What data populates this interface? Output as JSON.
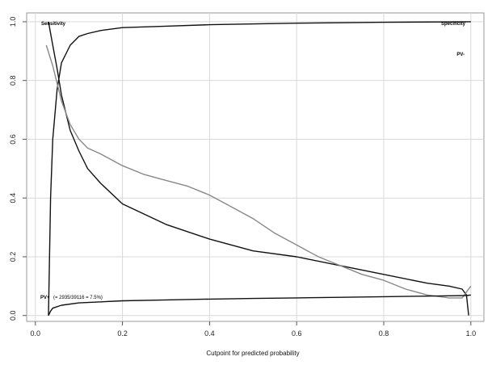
{
  "chart_data": {
    "type": "line",
    "title": "",
    "xlabel": "Cutpoint for predicted probability",
    "ylabel": "",
    "xlim": [
      -0.02,
      1.03
    ],
    "ylim": [
      -0.02,
      1.03
    ],
    "x_ticks": [
      "0.0",
      "0.2",
      "0.4",
      "0.6",
      "0.8",
      "1.0"
    ],
    "y_ticks": [
      "0.0",
      "0.2",
      "0.4",
      "0.6",
      "0.8",
      "1.0"
    ],
    "grid": true,
    "legend": "none",
    "annotations": {
      "sensitivity": "Sensitivity",
      "specificity": "Specificity",
      "pv_minus": "PV-",
      "pv_plus": "PV+",
      "pv_plus_note": "(= 2935/39116 = 7.5%)"
    },
    "series": [
      {
        "color": "#111111",
        "x": [
          0.03,
          0.04,
          0.05,
          0.06,
          0.08,
          0.1,
          0.12,
          0.15,
          0.2,
          0.3,
          0.4,
          0.5,
          0.6,
          0.7,
          0.8,
          0.9,
          0.95,
          0.98,
          0.99,
          0.995
        ],
        "y": [
          1.0,
          0.92,
          0.84,
          0.75,
          0.63,
          0.56,
          0.5,
          0.45,
          0.38,
          0.31,
          0.26,
          0.22,
          0.2,
          0.17,
          0.14,
          0.11,
          0.1,
          0.09,
          0.07,
          0.0
        ]
      },
      {
        "color": "#111111",
        "x": [
          0.03,
          0.035,
          0.04,
          0.05,
          0.06,
          0.08,
          0.1,
          0.12,
          0.15,
          0.2,
          0.3,
          0.4,
          0.6,
          0.8,
          1.0
        ],
        "y": [
          0.0,
          0.4,
          0.6,
          0.77,
          0.86,
          0.92,
          0.95,
          0.96,
          0.97,
          0.98,
          0.985,
          0.99,
          0.995,
          0.998,
          1.0
        ]
      },
      {
        "color": "#888888",
        "x": [
          0.025,
          0.04,
          0.06,
          0.08,
          0.1,
          0.12,
          0.15,
          0.2,
          0.25,
          0.3,
          0.35,
          0.4,
          0.45,
          0.5,
          0.55,
          0.6,
          0.65,
          0.7,
          0.75,
          0.8,
          0.85,
          0.9,
          0.95,
          0.98,
          0.99,
          1.0
        ],
        "y": [
          0.92,
          0.85,
          0.73,
          0.65,
          0.6,
          0.57,
          0.55,
          0.51,
          0.48,
          0.46,
          0.44,
          0.41,
          0.37,
          0.33,
          0.28,
          0.24,
          0.2,
          0.17,
          0.14,
          0.12,
          0.09,
          0.07,
          0.06,
          0.06,
          0.08,
          0.1
        ]
      },
      {
        "color": "#111111",
        "x": [
          0.03,
          0.035,
          0.04,
          0.06,
          0.1,
          0.2,
          0.3,
          0.4,
          0.5,
          0.6,
          0.7,
          0.8,
          0.9,
          0.95,
          0.99,
          1.0
        ],
        "y": [
          0.0,
          0.015,
          0.025,
          0.035,
          0.043,
          0.05,
          0.053,
          0.056,
          0.058,
          0.06,
          0.062,
          0.064,
          0.066,
          0.067,
          0.068,
          0.07
        ]
      }
    ]
  }
}
